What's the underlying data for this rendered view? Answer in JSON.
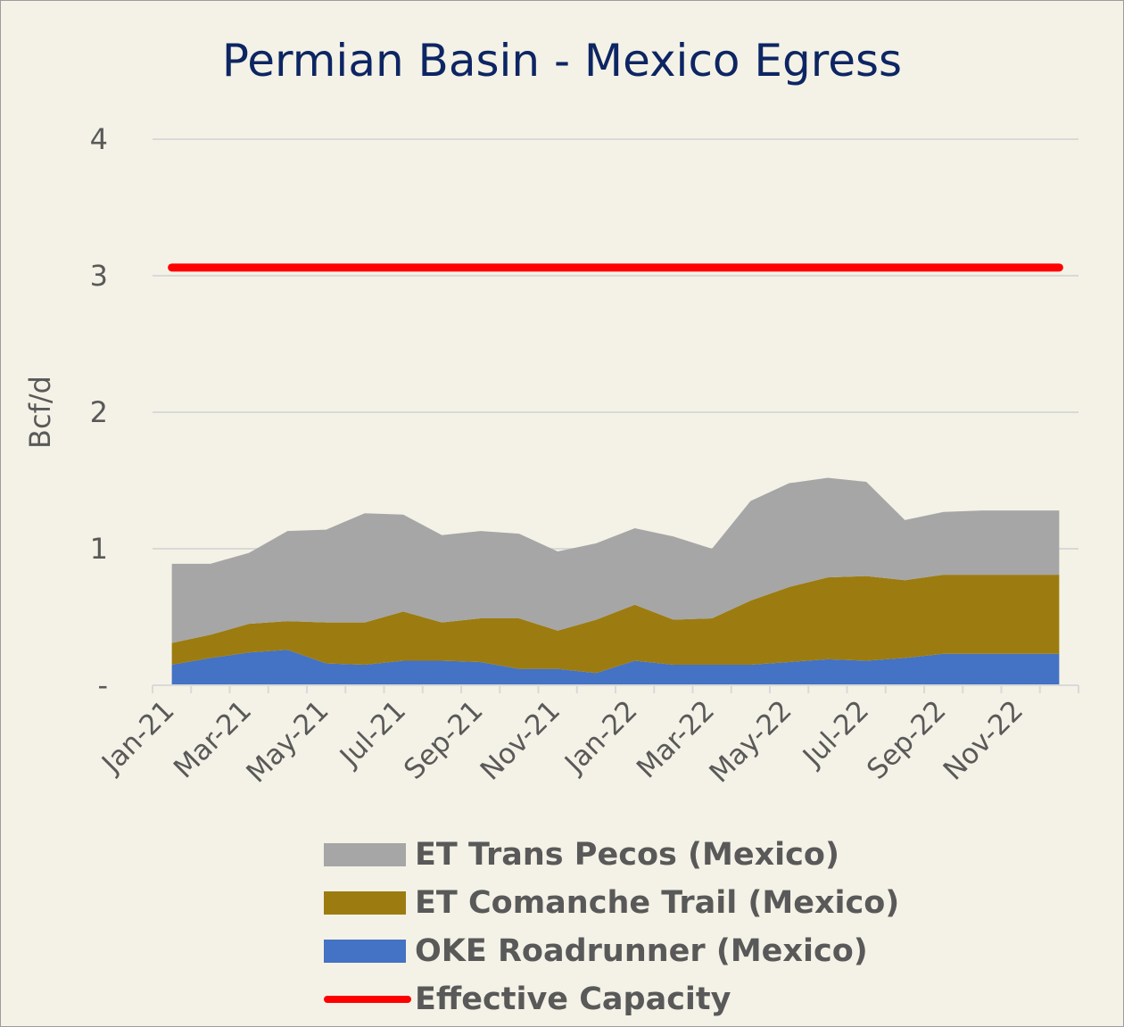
{
  "chart_data": {
    "type": "area",
    "title": "Permian Basin - Mexico Egress",
    "ylabel": "Bcf/d",
    "xlabel": "",
    "ylim": [
      0,
      4
    ],
    "y_tick_labels": [
      "-",
      "1",
      "2",
      "3",
      "4"
    ],
    "y_tick_values": [
      0,
      1,
      2,
      3,
      4
    ],
    "x": [
      "Jan-21",
      "Feb-21",
      "Mar-21",
      "Apr-21",
      "May-21",
      "Jun-21",
      "Jul-21",
      "Aug-21",
      "Sep-21",
      "Oct-21",
      "Nov-21",
      "Dec-21",
      "Jan-22",
      "Feb-22",
      "Mar-22",
      "Apr-22",
      "May-22",
      "Jun-22",
      "Jul-22",
      "Aug-22",
      "Sep-22",
      "Oct-22",
      "Nov-22",
      "Dec-22"
    ],
    "x_tick_labels": [
      "Jan-21",
      "Mar-21",
      "May-21",
      "Jul-21",
      "Sep-21",
      "Nov-21",
      "Jan-22",
      "Mar-22",
      "May-22",
      "Jul-22",
      "Sep-22",
      "Nov-22"
    ],
    "stacked": true,
    "series": [
      {
        "name": "OKE Roadrunner (Mexico)",
        "color": "#4472c4",
        "values": [
          0.15,
          0.2,
          0.24,
          0.26,
          0.16,
          0.15,
          0.18,
          0.18,
          0.17,
          0.12,
          0.12,
          0.09,
          0.18,
          0.15,
          0.15,
          0.15,
          0.17,
          0.19,
          0.18,
          0.2,
          0.23,
          0.23,
          0.23,
          0.23
        ]
      },
      {
        "name": "ET Comanche Trail (Mexico)",
        "color": "#9c7c10",
        "values": [
          0.16,
          0.17,
          0.21,
          0.21,
          0.3,
          0.31,
          0.36,
          0.28,
          0.32,
          0.37,
          0.28,
          0.39,
          0.41,
          0.33,
          0.34,
          0.47,
          0.55,
          0.6,
          0.62,
          0.57,
          0.58,
          0.58,
          0.58,
          0.58
        ]
      },
      {
        "name": "ET Trans Pecos (Mexico)",
        "color": "#a6a6a6",
        "values": [
          0.58,
          0.52,
          0.52,
          0.66,
          0.68,
          0.8,
          0.71,
          0.64,
          0.64,
          0.62,
          0.58,
          0.56,
          0.56,
          0.61,
          0.51,
          0.73,
          0.76,
          0.73,
          0.69,
          0.44,
          0.46,
          0.47,
          0.47,
          0.47
        ]
      }
    ],
    "lines": [
      {
        "name": "Effective Capacity",
        "color": "#ff0000",
        "value": 3.06
      }
    ],
    "legend_order": [
      "ET Trans Pecos (Mexico)",
      "ET Comanche Trail (Mexico)",
      "OKE Roadrunner (Mexico)",
      "Effective Capacity"
    ],
    "grid": true,
    "legend": "bottom"
  },
  "legend": {
    "trans_pecos": "ET Trans Pecos (Mexico)",
    "comanche_trail": "ET Comanche Trail (Mexico)",
    "roadrunner": "OKE Roadrunner (Mexico)",
    "capacity": "Effective Capacity"
  },
  "colors": {
    "background": "#f4f2e6",
    "title": "#0d2563",
    "trans_pecos": "#a6a6a6",
    "comanche_trail": "#9c7c10",
    "roadrunner": "#4472c4",
    "capacity": "#ff0000"
  }
}
